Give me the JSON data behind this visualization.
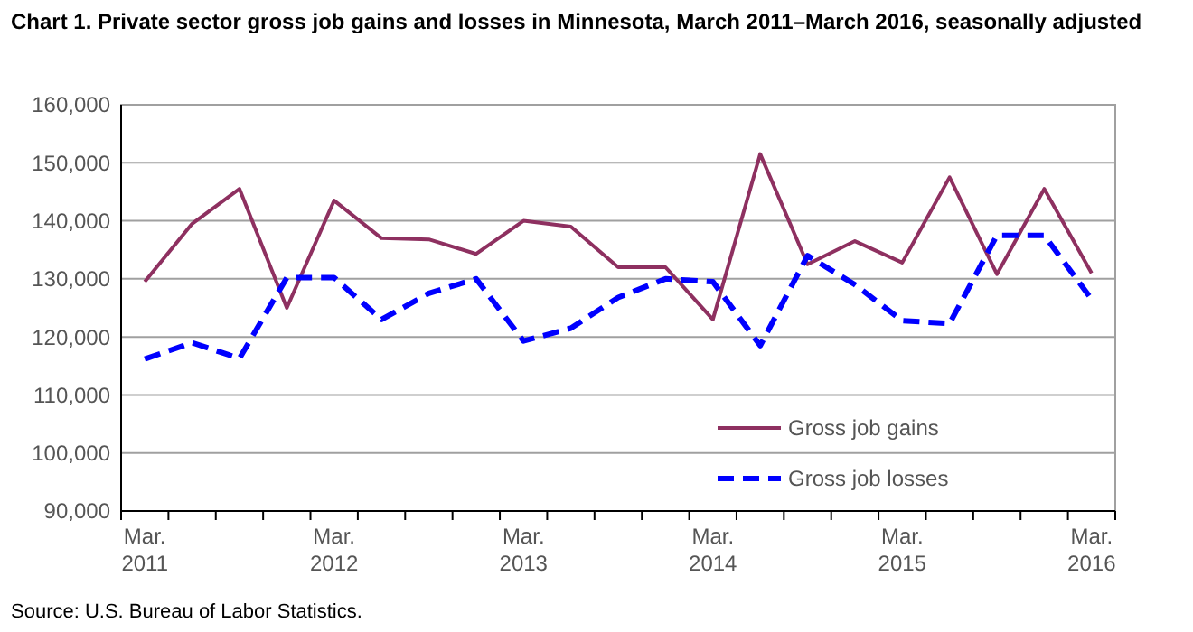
{
  "chart_data": {
    "type": "line",
    "title": "Chart 1. Private sector gross job gains and losses in Minnesota, March 2011–March 2016, seasonally adjusted",
    "categories": [
      "Mar. 2011",
      null,
      null,
      null,
      "Mar. 2012",
      null,
      null,
      null,
      "Mar. 2013",
      null,
      null,
      null,
      "Mar. 2014",
      null,
      null,
      null,
      "Mar. 2015",
      null,
      null,
      null,
      "Mar. 2016"
    ],
    "series": [
      {
        "name": "Gross job gains",
        "color": "#8e3060",
        "line_style": "solid",
        "values": [
          129500,
          139500,
          145500,
          125000,
          143500,
          137000,
          136800,
          134300,
          140000,
          139000,
          132000,
          132000,
          123000,
          151500,
          132500,
          136500,
          132800,
          147500,
          130800,
          145500,
          131000
        ]
      },
      {
        "name": "Gross job losses",
        "color": "#0000ff",
        "line_style": "dashed",
        "values": [
          116200,
          119000,
          116300,
          130200,
          130200,
          123000,
          127500,
          130000,
          119300,
          121500,
          126800,
          130000,
          129500,
          118500,
          134000,
          129000,
          122800,
          122300,
          137500,
          137500,
          126500
        ]
      }
    ],
    "ylim": [
      90000,
      160000
    ],
    "yticks": [
      {
        "value": 90000,
        "label": "90,000"
      },
      {
        "value": 100000,
        "label": "100,000"
      },
      {
        "value": 110000,
        "label": "110,000"
      },
      {
        "value": 120000,
        "label": "120,000"
      },
      {
        "value": 130000,
        "label": "130,000"
      },
      {
        "value": 140000,
        "label": "140,000"
      },
      {
        "value": 150000,
        "label": "150,000"
      },
      {
        "value": 160000,
        "label": "160,000"
      }
    ],
    "grid": "y",
    "legend": "bottom right",
    "annotations": [
      "Source: U.S. Bureau of Labor Statistics."
    ]
  }
}
